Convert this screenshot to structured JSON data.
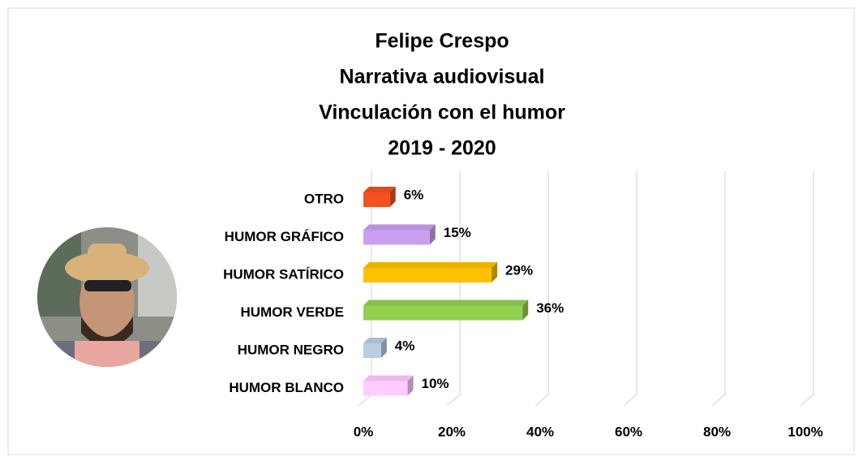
{
  "chart_data": {
    "type": "bar3d-horizontal",
    "title": [
      "Felipe Crespo",
      "Narrativa audiovisual",
      "Vinculación con el humor",
      "2019 - 2020"
    ],
    "categories": [
      "OTRO",
      "HUMOR GRÁFICO",
      "HUMOR SATÍRICO",
      "HUMOR VERDE",
      "HUMOR NEGRO",
      "HUMOR BLANCO"
    ],
    "values": [
      6,
      15,
      29,
      36,
      4,
      10
    ],
    "value_labels": [
      "6%",
      "15%",
      "29%",
      "36%",
      "4%",
      "10%"
    ],
    "colors": [
      "#f4511e",
      "#c9a0f0",
      "#ffc000",
      "#92d050",
      "#b8cce4",
      "#ffccff"
    ],
    "xlim": [
      0,
      100
    ],
    "xticks": [
      {
        "value": 0,
        "label": "0%"
      },
      {
        "value": 20,
        "label": "20%"
      },
      {
        "value": 40,
        "label": "40%"
      },
      {
        "value": 60,
        "label": "60%"
      },
      {
        "value": 80,
        "label": "80%"
      },
      {
        "value": 100,
        "label": "100%"
      }
    ],
    "grid": true
  }
}
